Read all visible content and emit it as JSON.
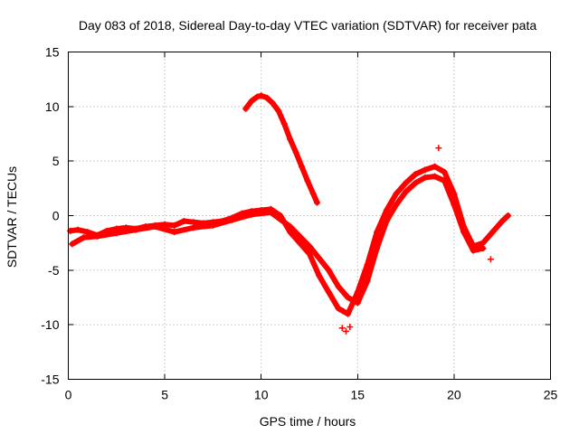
{
  "chart_data": {
    "type": "scatter",
    "title": "Day 083 of 2018, Sidereal Day-to-day VTEC variation (SDTVAR) for receiver pata",
    "xlabel": "GPS time / hours",
    "ylabel": "SDTVAR / TECUs",
    "xlim": [
      0,
      25
    ],
    "ylim": [
      -15,
      15
    ],
    "xticks": [
      0,
      5,
      10,
      15,
      20,
      25
    ],
    "yticks": [
      -15,
      -10,
      -5,
      0,
      5,
      10,
      15
    ],
    "grid": true,
    "marker": "+",
    "color": "#ff0000",
    "series": [
      {
        "name": "main track",
        "x": [
          0.1,
          0.5,
          1.0,
          1.5,
          2.0,
          2.5,
          3.0,
          3.5,
          4.0,
          4.5,
          5.0,
          5.5,
          6.0,
          6.5,
          7.0,
          7.5,
          8.0,
          8.5,
          9.0,
          9.5,
          10.0,
          10.5,
          11.0,
          11.5,
          12.0,
          12.5,
          13.0,
          13.5,
          14.0,
          14.5,
          15.0,
          15.5,
          16.0,
          16.5,
          17.0,
          17.5,
          18.0,
          18.5,
          19.0,
          19.5,
          20.0,
          20.5,
          21.0,
          21.5,
          22.0,
          22.5,
          22.8
        ],
        "y": [
          -1.4,
          -1.3,
          -1.5,
          -1.8,
          -1.4,
          -1.2,
          -1.1,
          -1.2,
          -1.0,
          -0.9,
          -0.8,
          -0.9,
          -0.5,
          -0.6,
          -0.7,
          -0.6,
          -0.5,
          -0.2,
          0.2,
          0.4,
          0.5,
          0.6,
          0.0,
          -1.5,
          -2.5,
          -3.5,
          -5.5,
          -7.0,
          -8.5,
          -9.0,
          -7.0,
          -4.5,
          -1.5,
          0.5,
          2.0,
          3.0,
          3.8,
          4.2,
          4.5,
          4.0,
          2.0,
          -1.0,
          -2.8,
          -2.5,
          -1.5,
          -0.5,
          0.0
        ]
      },
      {
        "name": "secondary track",
        "x": [
          0.2,
          0.8,
          1.5,
          2.5,
          3.5,
          4.5,
          5.5,
          6.5,
          7.5,
          8.5,
          9.5,
          10.5,
          11.5,
          12.5,
          13.5,
          14.0,
          14.5,
          15.0,
          15.5,
          16.0,
          16.5,
          17.0,
          17.5,
          18.0,
          18.5,
          19.0,
          19.5,
          20.0,
          20.5,
          21.0,
          21.5
        ],
        "y": [
          -2.6,
          -2.0,
          -1.9,
          -1.6,
          -1.3,
          -1.0,
          -1.5,
          -1.1,
          -0.9,
          -0.4,
          0.1,
          0.3,
          -1.0,
          -2.8,
          -5.0,
          -6.5,
          -7.5,
          -8.0,
          -6.0,
          -3.0,
          -0.5,
          1.0,
          2.2,
          3.0,
          3.5,
          3.6,
          3.2,
          1.0,
          -1.5,
          -3.2,
          -3.0
        ]
      },
      {
        "name": "upper arc",
        "x": [
          9.2,
          9.5,
          9.8,
          10.0,
          10.3,
          10.6,
          10.9,
          11.2,
          11.5,
          11.8,
          12.1,
          12.4,
          12.7,
          12.9
        ],
        "y": [
          9.8,
          10.5,
          10.9,
          11.0,
          10.8,
          10.3,
          9.6,
          8.4,
          7.0,
          5.8,
          4.5,
          3.2,
          2.0,
          1.2
        ]
      },
      {
        "name": "outliers",
        "x": [
          14.2,
          14.4,
          14.6,
          19.2,
          21.9
        ],
        "y": [
          -10.3,
          -10.6,
          -10.2,
          6.2,
          -4.0
        ]
      }
    ]
  }
}
